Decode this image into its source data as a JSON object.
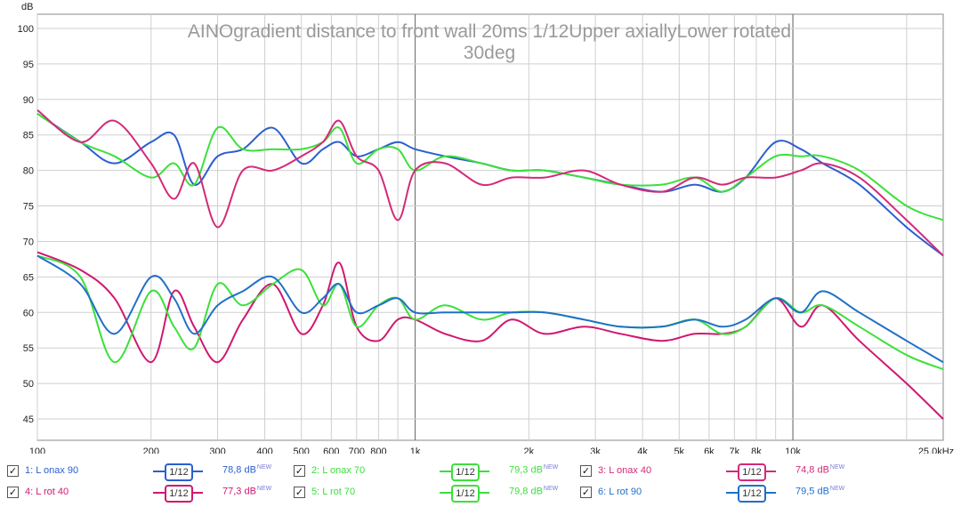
{
  "chart_data": {
    "type": "line",
    "title_line1": "AINOgradient distance to front wall 20ms 1/12Upper axiallyLower rotated",
    "title_line2": "30deg",
    "ylabel": "dB",
    "xlabel": "",
    "x_scale": "log",
    "xlim": [
      100,
      25000
    ],
    "ylim": [
      42,
      102
    ],
    "grid": true,
    "y_ticks": [
      100,
      95,
      90,
      85,
      80,
      75,
      70,
      65,
      60,
      55,
      50,
      45
    ],
    "x_ticks": [
      {
        "f": 100,
        "label": "100"
      },
      {
        "f": 200,
        "label": "200"
      },
      {
        "f": 300,
        "label": "300"
      },
      {
        "f": 400,
        "label": "400"
      },
      {
        "f": 500,
        "label": "500"
      },
      {
        "f": 600,
        "label": "600"
      },
      {
        "f": 700,
        "label": "700"
      },
      {
        "f": 800,
        "label": "800"
      },
      {
        "f": 1000,
        "label": "1k"
      },
      {
        "f": 2000,
        "label": "2k"
      },
      {
        "f": 3000,
        "label": "3k"
      },
      {
        "f": 4000,
        "label": "4k"
      },
      {
        "f": 5000,
        "label": "5k"
      },
      {
        "f": 6000,
        "label": "6k"
      },
      {
        "f": 7000,
        "label": "7k"
      },
      {
        "f": 8000,
        "label": "8k"
      },
      {
        "f": 10000,
        "label": "10k"
      },
      {
        "f": 25000,
        "label": "25,0kHz"
      }
    ],
    "series": [
      {
        "name": "1: L onax 90",
        "color": "#2a5fd0",
        "x": [
          100,
          130,
          160,
          200,
          230,
          260,
          300,
          350,
          420,
          500,
          570,
          630,
          700,
          800,
          900,
          1000,
          1200,
          1500,
          1800,
          2200,
          2800,
          3500,
          4500,
          5500,
          6500,
          7500,
          9000,
          10500,
          12000,
          15000,
          20000,
          25000
        ],
        "y": [
          88,
          84,
          81,
          84,
          85,
          78,
          82,
          83,
          86,
          81,
          83,
          84,
          82,
          83,
          84,
          83,
          82,
          81,
          80,
          80,
          79,
          78,
          77,
          78,
          77,
          79,
          84,
          83,
          81,
          78,
          72,
          68
        ]
      },
      {
        "name": "2: L onax 70",
        "color": "#3be03b",
        "x": [
          100,
          130,
          160,
          200,
          230,
          260,
          300,
          350,
          420,
          500,
          570,
          630,
          700,
          800,
          900,
          1000,
          1200,
          1500,
          1800,
          2200,
          2800,
          3500,
          4500,
          5500,
          6500,
          7500,
          9000,
          10500,
          12000,
          15000,
          20000,
          25000
        ],
        "y": [
          88,
          84,
          82,
          79,
          81,
          78,
          86,
          83,
          83,
          83,
          84,
          86,
          81,
          83,
          83,
          80,
          82,
          81,
          80,
          80,
          79,
          78,
          78,
          79,
          77,
          79,
          82,
          82,
          82,
          80,
          75,
          73
        ]
      },
      {
        "name": "3: L onax 40",
        "color": "#d32a78",
        "x": [
          100,
          130,
          160,
          200,
          230,
          260,
          300,
          350,
          420,
          500,
          570,
          630,
          700,
          800,
          900,
          1000,
          1200,
          1500,
          1800,
          2200,
          2800,
          3500,
          4500,
          5500,
          6500,
          7500,
          9000,
          10500,
          12000,
          15000,
          20000,
          25000
        ],
        "y": [
          88.5,
          84,
          87,
          81,
          76,
          81,
          72,
          80,
          80,
          82,
          84,
          87,
          82,
          80,
          73,
          80,
          81,
          78,
          79,
          79,
          80,
          78,
          77,
          79,
          78,
          79,
          79,
          80,
          81,
          79,
          73,
          68
        ]
      },
      {
        "name": "4: L rot 40",
        "color": "#d01870",
        "x": [
          100,
          130,
          160,
          200,
          230,
          260,
          300,
          350,
          420,
          500,
          570,
          630,
          700,
          800,
          900,
          1000,
          1200,
          1500,
          1800,
          2200,
          2800,
          3500,
          4500,
          5500,
          6500,
          7500,
          9000,
          10500,
          12000,
          15000,
          20000,
          25000
        ],
        "y": [
          68.5,
          66,
          62,
          53,
          63,
          58,
          53,
          59,
          64,
          57,
          61,
          67,
          58,
          56,
          59,
          59,
          57,
          56,
          59,
          57,
          58,
          57,
          56,
          57,
          57,
          58,
          62,
          58,
          61,
          56,
          50,
          45
        ]
      },
      {
        "name": "5: L rot 70",
        "color": "#3be03b",
        "x": [
          100,
          130,
          160,
          200,
          230,
          260,
          300,
          350,
          420,
          500,
          570,
          630,
          700,
          800,
          900,
          1000,
          1200,
          1500,
          1800,
          2200,
          2800,
          3500,
          4500,
          5500,
          6500,
          7500,
          9000,
          10500,
          12000,
          15000,
          20000,
          25000
        ],
        "y": [
          68,
          65,
          53,
          63,
          58,
          55,
          64,
          61,
          64,
          66,
          61,
          64,
          58,
          61,
          62,
          59,
          61,
          59,
          60,
          60,
          59,
          58,
          58,
          59,
          57,
          58,
          62,
          60,
          61,
          58,
          54,
          52
        ]
      },
      {
        "name": "6: L rot 90",
        "color": "#2070c8",
        "x": [
          100,
          130,
          160,
          200,
          230,
          260,
          300,
          350,
          420,
          500,
          570,
          630,
          700,
          800,
          900,
          1000,
          1200,
          1500,
          1800,
          2200,
          2800,
          3500,
          4500,
          5500,
          6500,
          7500,
          9000,
          10500,
          12000,
          15000,
          20000,
          25000
        ],
        "y": [
          68,
          64,
          57,
          65,
          62,
          57,
          61,
          63,
          65,
          60,
          62,
          64,
          60,
          61,
          62,
          60,
          60,
          60,
          60,
          60,
          59,
          58,
          58,
          59,
          58,
          59,
          62,
          60,
          63,
          60,
          56,
          53
        ]
      }
    ]
  },
  "legend": [
    {
      "label": "1: L onax 90",
      "smoothing": "1/12",
      "level": "78,8 dB",
      "badge": "NEW",
      "color": "#2a5fd0",
      "checked": "✓"
    },
    {
      "label": "2: L onax 70",
      "smoothing": "1/12",
      "level": "79,3 dB",
      "badge": "NEW",
      "color": "#3be03b",
      "checked": "✓"
    },
    {
      "label": "3: L onax 40",
      "smoothing": "1/12",
      "level": "74,8 dB",
      "badge": "NEW",
      "color": "#d32a78",
      "checked": "✓"
    },
    {
      "label": "4: L rot 40",
      "smoothing": "1/12",
      "level": "77,3 dB",
      "badge": "NEW",
      "color": "#d01870",
      "checked": "✓"
    },
    {
      "label": "5: L rot 70",
      "smoothing": "1/12",
      "level": "79,8 dB",
      "badge": "NEW",
      "color": "#3be03b",
      "checked": "✓"
    },
    {
      "label": "6: L rot 90",
      "smoothing": "1/12",
      "level": "79,5 dB",
      "badge": "NEW",
      "color": "#2070c8",
      "checked": "✓"
    }
  ]
}
